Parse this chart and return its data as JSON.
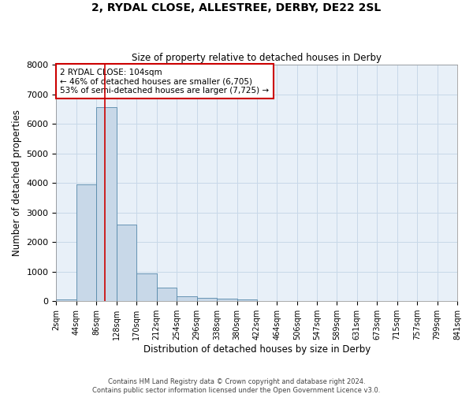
{
  "title_line1": "2, RYDAL CLOSE, ALLESTREE, DERBY, DE22 2SL",
  "title_line2": "Size of property relative to detached houses in Derby",
  "xlabel": "Distribution of detached houses by size in Derby",
  "ylabel": "Number of detached properties",
  "footer_line1": "Contains HM Land Registry data © Crown copyright and database right 2024.",
  "footer_line2": "Contains public sector information licensed under the Open Government Licence v3.0.",
  "annotation_line1": "2 RYDAL CLOSE: 104sqm",
  "annotation_line2": "← 46% of detached houses are smaller (6,705)",
  "annotation_line3": "53% of semi-detached houses are larger (7,725) →",
  "bins": [
    2,
    44,
    86,
    128,
    170,
    212,
    254,
    296,
    338,
    380,
    422,
    464,
    506,
    547,
    589,
    631,
    673,
    715,
    757,
    799,
    841
  ],
  "values": [
    50,
    3950,
    6550,
    2600,
    950,
    450,
    175,
    100,
    75,
    50,
    0,
    0,
    0,
    0,
    0,
    0,
    0,
    0,
    0,
    0
  ],
  "bar_color": "#c8d8e8",
  "bar_edge_color": "#5588aa",
  "vline_x": 104,
  "vline_color": "#cc0000",
  "annotation_box_color": "#cc0000",
  "ylim": [
    0,
    8000
  ],
  "yticks": [
    0,
    1000,
    2000,
    3000,
    4000,
    5000,
    6000,
    7000,
    8000
  ],
  "grid_color": "#c8d8e8",
  "background_color": "#e8f0f8"
}
